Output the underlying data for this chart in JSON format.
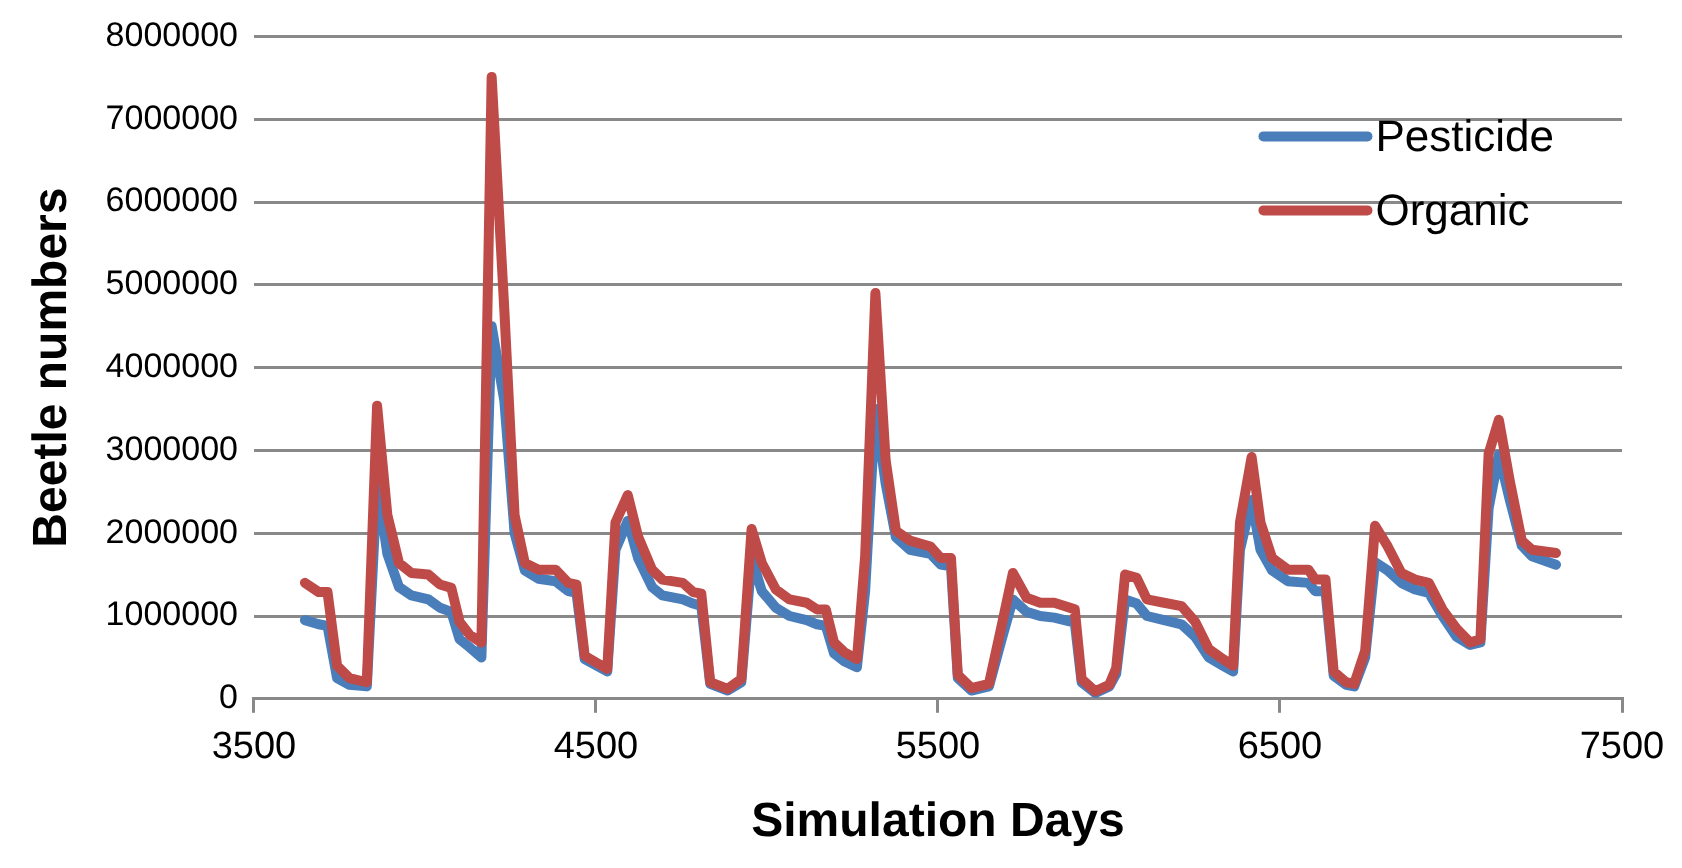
{
  "chart_data": {
    "type": "line",
    "xlabel": "Simulation Days",
    "ylabel": "Beetle numbers",
    "x": [
      3649,
      3689,
      3715,
      3743,
      3779,
      3830,
      3860,
      3890,
      3924,
      3960,
      4010,
      4044,
      4077,
      4101,
      4131,
      4165,
      4195,
      4232,
      4262,
      4292,
      4332,
      4382,
      4419,
      4443,
      4467,
      4533,
      4557,
      4593,
      4623,
      4664,
      4694,
      4754,
      4784,
      4808,
      4834,
      4885,
      4925,
      4955,
      4985,
      5026,
      5066,
      5116,
      5146,
      5172,
      5196,
      5227,
      5263,
      5287,
      5317,
      5347,
      5377,
      5418,
      5478,
      5508,
      5538,
      5558,
      5598,
      5649,
      5685,
      5719,
      5759,
      5799,
      5840,
      5870,
      5900,
      5920,
      5960,
      6001,
      6021,
      6047,
      6081,
      6111,
      6161,
      6212,
      6252,
      6292,
      6333,
      6363,
      6383,
      6417,
      6443,
      6477,
      6523,
      6583,
      6603,
      6633,
      6657,
      6693,
      6717,
      6749,
      6778,
      6815,
      6855,
      6895,
      6935,
      6975,
      7016,
      7056,
      7086,
      7110,
      7140,
      7172,
      7207,
      7237,
      7307
    ],
    "series": [
      {
        "name": "Pesticide",
        "color": "#4a7ebb",
        "values": [
          950000,
          900000,
          880000,
          250000,
          170000,
          150000,
          2600000,
          1750000,
          1350000,
          1250000,
          1200000,
          1100000,
          1050000,
          720000,
          620000,
          500000,
          4500000,
          3600000,
          2000000,
          1550000,
          1450000,
          1420000,
          1300000,
          1280000,
          480000,
          330000,
          1800000,
          2150000,
          1700000,
          1350000,
          1250000,
          1200000,
          1150000,
          1120000,
          180000,
          100000,
          200000,
          1700000,
          1300000,
          1100000,
          1000000,
          950000,
          900000,
          880000,
          550000,
          450000,
          380000,
          1300000,
          3500000,
          2600000,
          1950000,
          1800000,
          1750000,
          1620000,
          1600000,
          250000,
          100000,
          150000,
          700000,
          1200000,
          1050000,
          1000000,
          980000,
          950000,
          920000,
          200000,
          70000,
          150000,
          300000,
          1200000,
          1150000,
          1000000,
          950000,
          900000,
          750000,
          500000,
          400000,
          330000,
          1800000,
          2400000,
          1800000,
          1550000,
          1420000,
          1400000,
          1300000,
          1300000,
          280000,
          170000,
          150000,
          500000,
          1650000,
          1550000,
          1400000,
          1320000,
          1280000,
          1000000,
          750000,
          650000,
          680000,
          2300000,
          2950000,
          2400000,
          1850000,
          1720000,
          1620000
        ]
      },
      {
        "name": "Organic",
        "color": "#be4b48",
        "values": [
          1400000,
          1290000,
          1290000,
          400000,
          250000,
          200000,
          3540000,
          2220000,
          1640000,
          1520000,
          1500000,
          1380000,
          1340000,
          930000,
          770000,
          680000,
          7510000,
          4700000,
          2220000,
          1640000,
          1560000,
          1560000,
          1400000,
          1380000,
          520000,
          360000,
          2130000,
          2460000,
          1960000,
          1560000,
          1440000,
          1400000,
          1290000,
          1270000,
          200000,
          120000,
          240000,
          2050000,
          1640000,
          1320000,
          1200000,
          1160000,
          1080000,
          1080000,
          680000,
          560000,
          480000,
          1720000,
          4900000,
          2880000,
          2030000,
          1910000,
          1840000,
          1700000,
          1700000,
          290000,
          130000,
          180000,
          860000,
          1520000,
          1220000,
          1160000,
          1160000,
          1120000,
          1080000,
          240000,
          90000,
          170000,
          370000,
          1500000,
          1460000,
          1200000,
          1160000,
          1120000,
          930000,
          600000,
          480000,
          400000,
          2130000,
          2920000,
          2130000,
          1700000,
          1560000,
          1560000,
          1440000,
          1440000,
          330000,
          200000,
          180000,
          580000,
          2090000,
          1840000,
          1520000,
          1440000,
          1400000,
          1080000,
          850000,
          680000,
          720000,
          2960000,
          3370000,
          2630000,
          1910000,
          1800000,
          1760000
        ]
      }
    ],
    "xlim": [
      3500,
      7500
    ],
    "xticks": [
      3500,
      4500,
      5500,
      6500,
      7500
    ],
    "ylim": [
      0,
      8000000
    ],
    "yticks": [
      0,
      1000000,
      2000000,
      3000000,
      4000000,
      5000000,
      6000000,
      7000000,
      8000000
    ],
    "grid": "y",
    "legend": "top right",
    "marker": "none",
    "line_style": "solid"
  }
}
